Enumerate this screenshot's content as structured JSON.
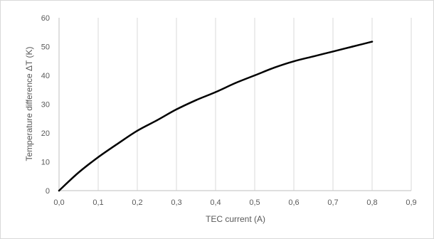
{
  "chart_data": {
    "type": "line",
    "title": "",
    "xlabel": "TEC current (A)",
    "ylabel": "Temperature difference ΔT (K)",
    "xlim": [
      0,
      0.9
    ],
    "ylim": [
      0,
      60
    ],
    "x_ticks": [
      "0,0",
      "0,1",
      "0,2",
      "0,3",
      "0,4",
      "0,5",
      "0,6",
      "0,7",
      "0,8",
      "0,9"
    ],
    "y_ticks": [
      "0",
      "10",
      "20",
      "30",
      "40",
      "50",
      "60"
    ],
    "grid": "vertical",
    "legend": "none",
    "line_color": "#000000",
    "grid_color": "#d9d9d9",
    "series": [
      {
        "x": [
          0.0,
          0.05,
          0.1,
          0.15,
          0.2,
          0.25,
          0.3,
          0.35,
          0.4,
          0.45,
          0.5,
          0.55,
          0.6,
          0.65,
          0.7,
          0.75,
          0.8
        ],
        "y": [
          0.0,
          6.3,
          11.6,
          16.3,
          20.8,
          24.4,
          28.2,
          31.4,
          34.2,
          37.3,
          40.0,
          42.7,
          44.9,
          46.6,
          48.3,
          50.0,
          51.7
        ]
      }
    ]
  }
}
